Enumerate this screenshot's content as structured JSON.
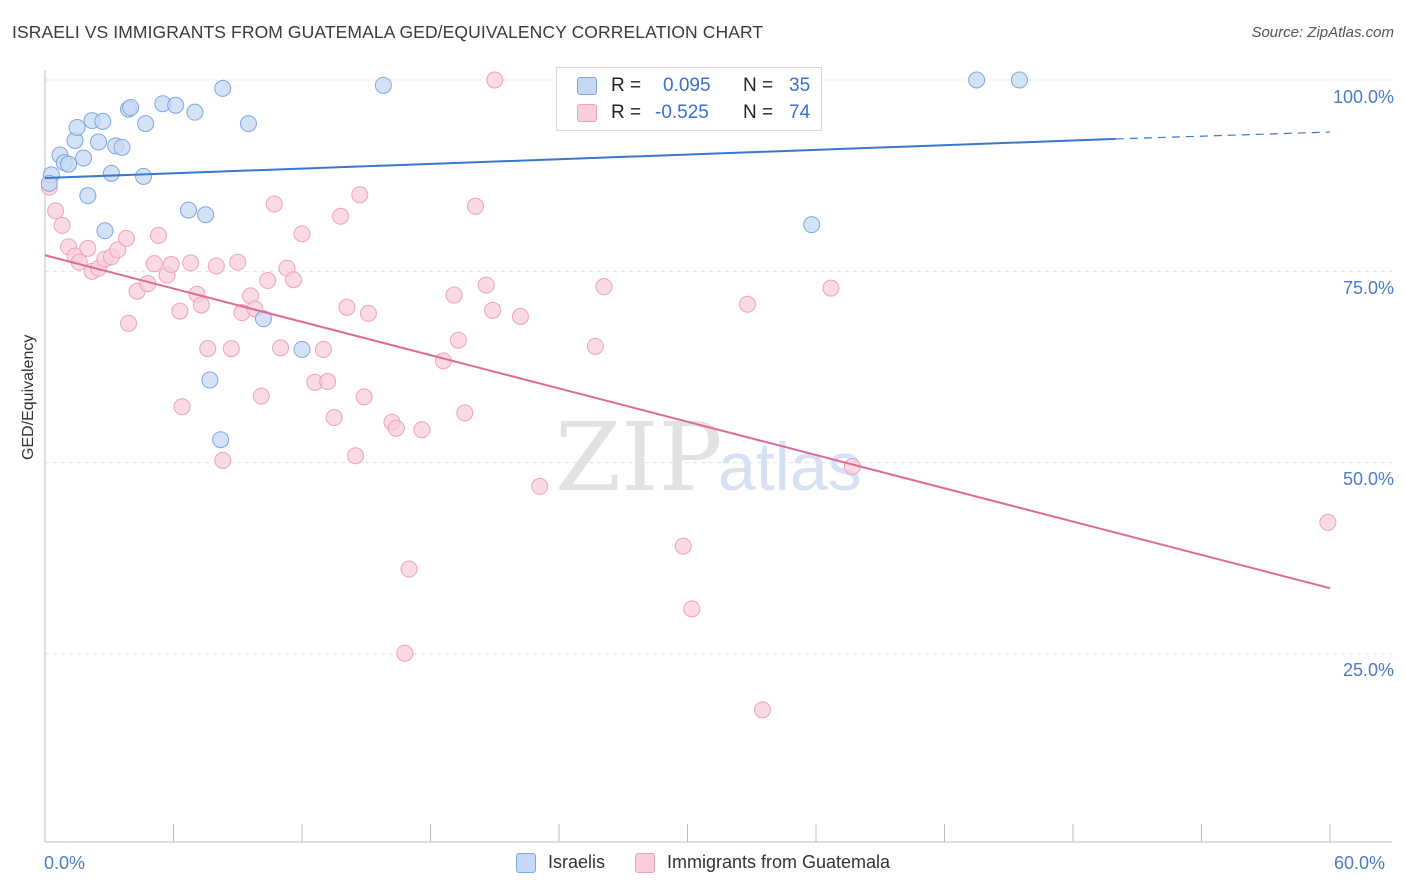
{
  "chart_data": {
    "type": "scatter",
    "title": "ISRAELI VS IMMIGRANTS FROM GUATEMALA GED/EQUIVALENCY CORRELATION CHART",
    "source": "Source: ZipAtlas.com",
    "ylabel": "GED/Equivalency",
    "xlabel": "",
    "xlim": [
      0,
      60
    ],
    "ylim": [
      0,
      102
    ],
    "x_tick_labels": [
      "0.0%",
      "60.0%"
    ],
    "y_tick_labels": [
      {
        "value": 100,
        "label": "100.0%"
      },
      {
        "value": 75,
        "label": "75.0%"
      },
      {
        "value": 50,
        "label": "50.0%"
      },
      {
        "value": 25,
        "label": "25.0%"
      }
    ],
    "watermark": {
      "part1": "ZIP",
      "part2": "atlas"
    },
    "legend": [
      {
        "name": "Israelis",
        "r_label": "R =",
        "r_value": "0.095",
        "n_label": "N =",
        "n_value": "35"
      },
      {
        "name": "Immigrants from Guatemala",
        "r_label": "R =",
        "r_value": "-0.525",
        "n_label": "N =",
        "n_value": "74"
      }
    ],
    "colors": {
      "israelis_fill": "#c5d8f5",
      "israelis_stroke": "#7fa7e0",
      "israelis_line": "#3a78cc",
      "guatemala_fill": "#f8cedb",
      "guatemala_stroke": "#eea2bb",
      "guatemala_line": "#e06a96"
    },
    "series": [
      {
        "name": "Israelis",
        "trend": {
          "x0": 0,
          "y0": 87.2,
          "x1": 50,
          "y1": 92.3,
          "dash_to_x": 60,
          "dash_to_y": 93.2
        },
        "points": [
          [
            0.3,
            87.6
          ],
          [
            0.7,
            90.2
          ],
          [
            0.9,
            89.2
          ],
          [
            1.1,
            89.0
          ],
          [
            1.4,
            92.1
          ],
          [
            1.5,
            93.8
          ],
          [
            1.8,
            89.8
          ],
          [
            2.0,
            84.9
          ],
          [
            2.2,
            94.7
          ],
          [
            2.5,
            91.9
          ],
          [
            2.7,
            94.6
          ],
          [
            2.8,
            80.3
          ],
          [
            3.1,
            87.8
          ],
          [
            3.3,
            91.4
          ],
          [
            3.6,
            91.2
          ],
          [
            3.9,
            96.2
          ],
          [
            4.0,
            96.4
          ],
          [
            4.6,
            87.4
          ],
          [
            4.7,
            94.3
          ],
          [
            5.5,
            96.9
          ],
          [
            6.1,
            96.7
          ],
          [
            6.7,
            83.0
          ],
          [
            7.0,
            95.8
          ],
          [
            7.5,
            82.4
          ],
          [
            7.7,
            60.8
          ],
          [
            8.2,
            53.0
          ],
          [
            8.3,
            98.9
          ],
          [
            9.5,
            94.3
          ],
          [
            10.2,
            68.8
          ],
          [
            12.0,
            64.8
          ],
          [
            15.8,
            99.3
          ],
          [
            35.8,
            81.1
          ],
          [
            43.5,
            100.0
          ],
          [
            45.5,
            100.0
          ],
          [
            0.2,
            86.5
          ]
        ]
      },
      {
        "name": "Immigrants from Guatemala",
        "trend": {
          "x0": 0,
          "y0": 77.1,
          "x1": 60,
          "y1": 33.6
        },
        "points": [
          [
            0.2,
            86.0
          ],
          [
            0.5,
            82.9
          ],
          [
            0.8,
            81.0
          ],
          [
            1.1,
            78.2
          ],
          [
            1.4,
            77.0
          ],
          [
            1.6,
            76.2
          ],
          [
            2.0,
            78.0
          ],
          [
            2.2,
            75.0
          ],
          [
            2.5,
            75.4
          ],
          [
            2.8,
            76.6
          ],
          [
            3.1,
            76.9
          ],
          [
            3.4,
            77.8
          ],
          [
            3.8,
            79.3
          ],
          [
            3.9,
            68.2
          ],
          [
            4.3,
            72.4
          ],
          [
            4.8,
            73.4
          ],
          [
            5.1,
            76.0
          ],
          [
            5.3,
            79.7
          ],
          [
            5.7,
            74.5
          ],
          [
            5.9,
            75.9
          ],
          [
            6.3,
            69.8
          ],
          [
            6.4,
            57.3
          ],
          [
            6.8,
            76.1
          ],
          [
            7.1,
            72.0
          ],
          [
            7.3,
            70.6
          ],
          [
            7.6,
            64.9
          ],
          [
            8.0,
            75.7
          ],
          [
            8.3,
            50.3
          ],
          [
            8.7,
            64.9
          ],
          [
            9.0,
            76.2
          ],
          [
            9.2,
            69.6
          ],
          [
            9.6,
            71.8
          ],
          [
            9.8,
            70.1
          ],
          [
            10.1,
            58.7
          ],
          [
            10.4,
            73.8
          ],
          [
            10.7,
            83.8
          ],
          [
            11.0,
            65.0
          ],
          [
            11.3,
            75.4
          ],
          [
            11.6,
            73.9
          ],
          [
            12.0,
            79.9
          ],
          [
            12.6,
            60.5
          ],
          [
            13.0,
            64.8
          ],
          [
            13.2,
            60.6
          ],
          [
            13.5,
            55.9
          ],
          [
            13.8,
            82.2
          ],
          [
            14.1,
            70.3
          ],
          [
            14.5,
            50.9
          ],
          [
            14.7,
            85.0
          ],
          [
            14.9,
            58.6
          ],
          [
            15.1,
            69.5
          ],
          [
            16.2,
            55.3
          ],
          [
            16.4,
            54.5
          ],
          [
            16.8,
            25.1
          ],
          [
            17.0,
            36.1
          ],
          [
            17.6,
            54.3
          ],
          [
            18.6,
            63.3
          ],
          [
            19.1,
            71.9
          ],
          [
            19.3,
            66.0
          ],
          [
            19.6,
            56.5
          ],
          [
            20.1,
            83.5
          ],
          [
            20.6,
            73.2
          ],
          [
            20.9,
            69.9
          ],
          [
            21.0,
            100.0
          ],
          [
            22.2,
            69.1
          ],
          [
            23.1,
            46.9
          ],
          [
            25.7,
            65.2
          ],
          [
            26.1,
            73.0
          ],
          [
            29.8,
            39.1
          ],
          [
            30.2,
            30.9
          ],
          [
            32.8,
            70.7
          ],
          [
            33.5,
            17.7
          ],
          [
            36.7,
            72.8
          ],
          [
            37.7,
            49.5
          ],
          [
            59.9,
            42.2
          ]
        ]
      }
    ]
  }
}
